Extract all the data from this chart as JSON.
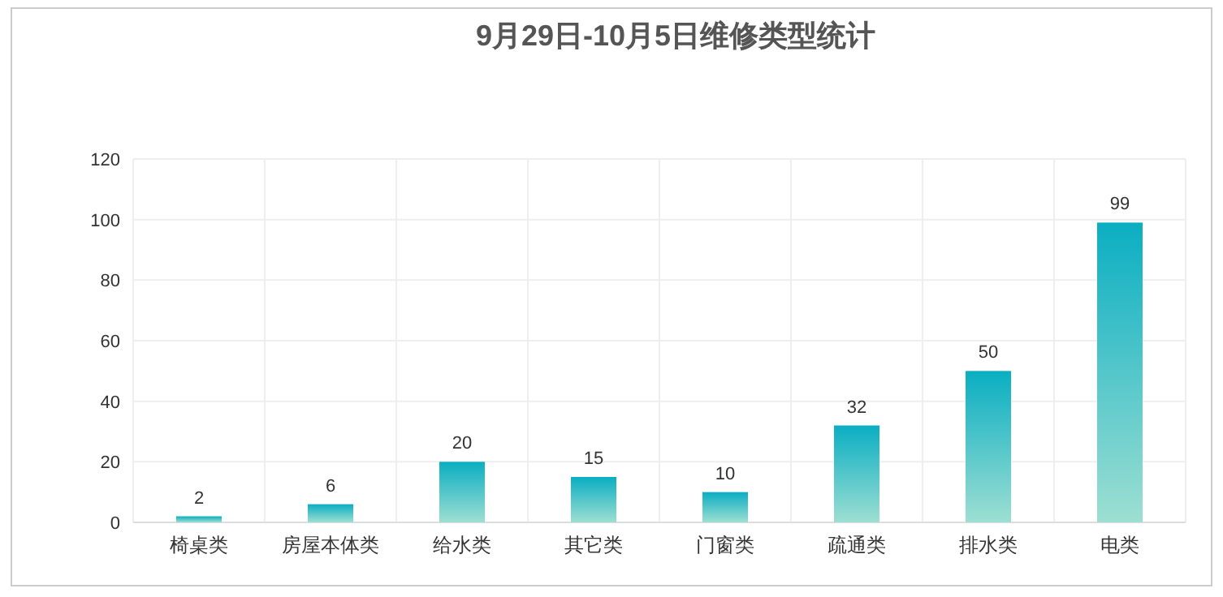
{
  "chart_data": {
    "type": "bar",
    "title": "9月29日-10月5日维修类型统计",
    "categories": [
      "椅桌类",
      "房屋本体类",
      "给水类",
      "其它类",
      "门窗类",
      "疏通类",
      "排水类",
      "电类"
    ],
    "values": [
      2,
      6,
      20,
      15,
      10,
      32,
      50,
      99
    ],
    "color": "#0aaec2",
    "ylim": [
      0,
      120
    ],
    "yticks": [
      0,
      20,
      40,
      60,
      80,
      100,
      120
    ],
    "grid": true,
    "data_labels": true
  }
}
